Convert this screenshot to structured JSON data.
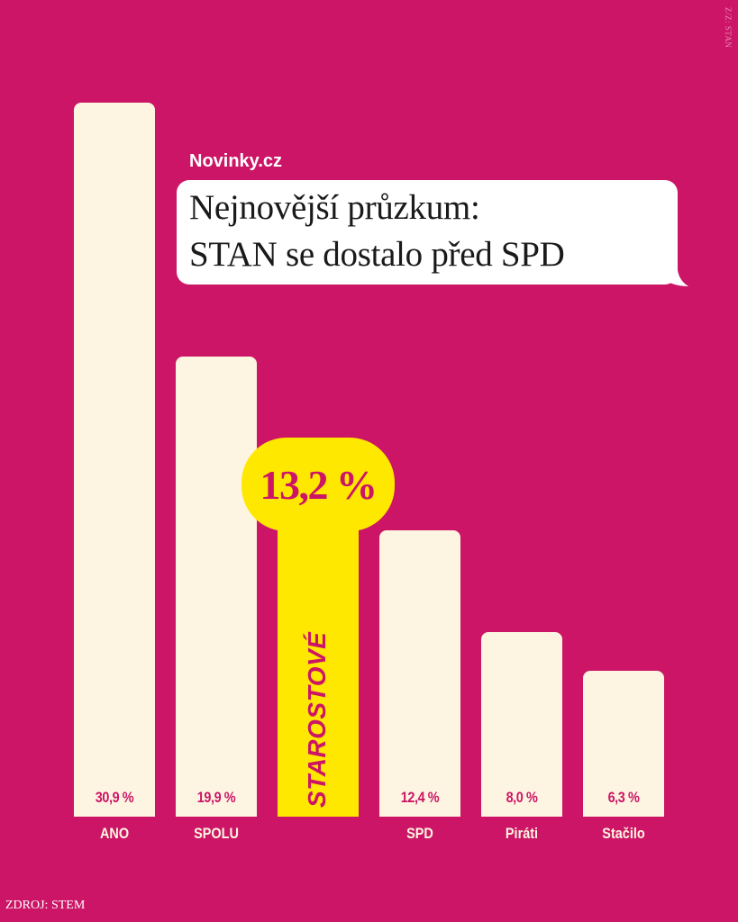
{
  "brand": "Novinky.cz",
  "title_lines": [
    "Nejnovější průzkum:",
    "STAN se dostalo před SPD"
  ],
  "credit": "Z/Z: STAN",
  "source": "ZDROJ: STEM",
  "colors": {
    "background": "#cc1566",
    "bar": "#fdf5e1",
    "highlight": "#ffe800",
    "title_box": "#ffffff"
  },
  "chart_data": {
    "type": "bar",
    "categories": [
      "ANO",
      "SPOLU",
      "STAROSTOVÉ",
      "SPD",
      "Piráti",
      "Stačilo"
    ],
    "values": [
      30.9,
      19.9,
      13.2,
      12.4,
      8.0,
      6.3
    ],
    "value_labels": [
      "30,9 %",
      "19,9 %",
      "13,2 %",
      "12,4 %",
      "8,0 %",
      "6,3 %"
    ],
    "highlight_index": 2,
    "highlight_label": "13,2 %",
    "title": "Nejnovější průzkum: STAN se dostalo před SPD",
    "xlabel": "",
    "ylabel": "",
    "grid": false
  }
}
